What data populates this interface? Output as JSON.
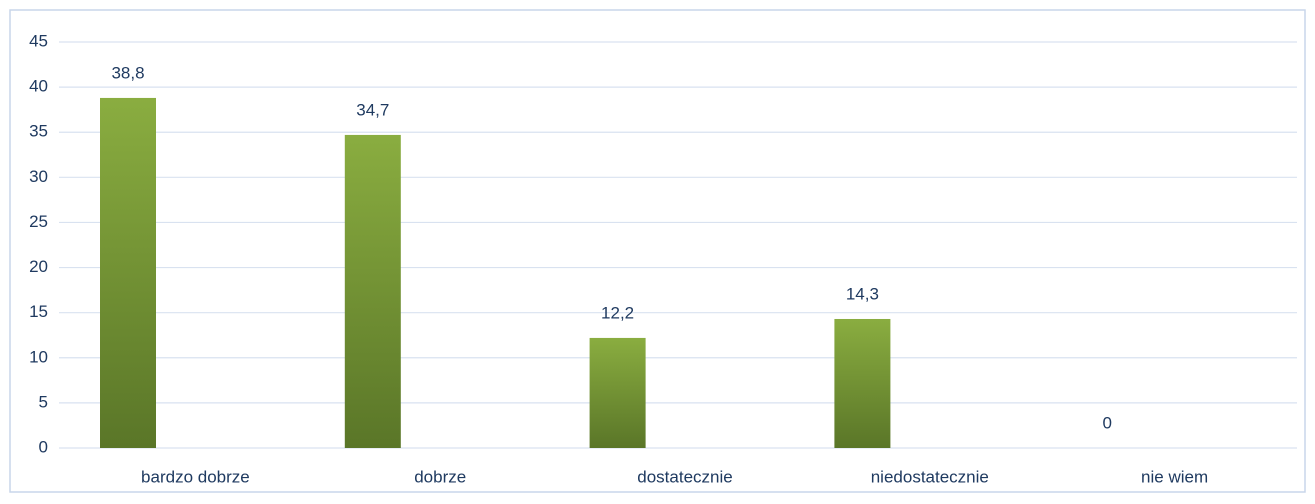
{
  "chart_data": {
    "type": "bar",
    "categories": [
      "bardzo dobrze",
      "dobrze",
      "dostatecznie",
      "niedostatecznie",
      "nie wiem"
    ],
    "values": [
      38.8,
      34.7,
      12.2,
      14.3,
      0
    ],
    "value_labels": [
      "38,8",
      "34,7",
      "12,2",
      "14,3",
      "0"
    ],
    "gradient": [
      "#8aad40",
      "#5a7628"
    ],
    "ylim": [
      0,
      45
    ],
    "yticks": [
      0,
      5,
      10,
      15,
      20,
      25,
      30,
      35,
      40,
      45
    ],
    "grid": true
  }
}
